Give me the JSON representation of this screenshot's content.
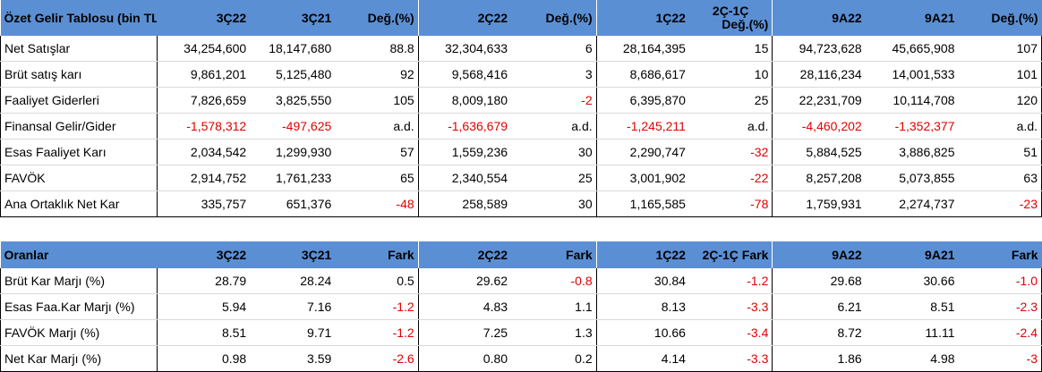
{
  "income": {
    "headers": [
      "Özet Gelir Tablosu (bin TL)",
      "3Ç22",
      "3Ç21",
      "Değ.(%)",
      "2Ç22",
      "Değ.(%)",
      "1Ç22",
      "2Ç-1Ç Değ.(%)",
      "9A22",
      "9A21",
      "Değ.(%)"
    ],
    "header_2c1c_line1": "2Ç-1Ç",
    "header_2c1c_line2": "Değ.(%)",
    "rows": [
      [
        "Net Satışlar",
        "34,254,600",
        "18,147,680",
        "88.8",
        "32,304,633",
        "6",
        "28,164,395",
        "15",
        "94,723,628",
        "45,665,908",
        "107"
      ],
      [
        "Brüt satış karı",
        "9,861,201",
        "5,125,480",
        "92",
        "9,568,416",
        "3",
        "8,686,617",
        "10",
        "28,116,234",
        "14,001,533",
        "101"
      ],
      [
        "Faaliyet Giderleri",
        "7,826,659",
        "3,825,550",
        "105",
        "8,009,180",
        "-2",
        "6,395,870",
        "25",
        "22,231,709",
        "10,114,708",
        "120"
      ],
      [
        "Finansal Gelir/Gider",
        "-1,578,312",
        "-497,625",
        "a.d.",
        "-1,636,679",
        "a.d.",
        "-1,245,211",
        "a.d.",
        "-4,460,202",
        "-1,352,377",
        "a.d."
      ],
      [
        "Esas Faaliyet Karı",
        "2,034,542",
        "1,299,930",
        "57",
        "1,559,236",
        "30",
        "2,290,747",
        "-32",
        "5,884,525",
        "3,886,825",
        "51"
      ],
      [
        "FAVÖK",
        "2,914,752",
        "1,761,233",
        "65",
        "2,340,554",
        "25",
        "3,001,902",
        "-22",
        "8,257,208",
        "5,073,855",
        "63"
      ],
      [
        "Ana Ortaklık Net Kar",
        "335,757",
        "651,376",
        "-48",
        "258,589",
        "30",
        "1,165,585",
        "-78",
        "1,759,931",
        "2,274,737",
        "-23"
      ]
    ]
  },
  "ratios": {
    "headers": [
      "Oranlar",
      "3Ç22",
      "3Ç21",
      "Fark",
      "2Ç22",
      "Fark",
      "1Ç22",
      "2Ç-1Ç Fark",
      "9A22",
      "9A21",
      "Fark"
    ],
    "rows": [
      [
        "Brüt Kar Marjı (%)",
        "28.79",
        "28.24",
        "0.5",
        "29.62",
        "-0.8",
        "30.84",
        "-1.2",
        "29.68",
        "30.66",
        "-1.0"
      ],
      [
        "Esas Faa.Kar Marjı (%)",
        "5.94",
        "7.16",
        "-1.2",
        "4.83",
        "1.1",
        "8.13",
        "-3.3",
        "6.21",
        "8.51",
        "-2.3"
      ],
      [
        "FAVÖK Marjı (%)",
        "8.51",
        "9.71",
        "-1.2",
        "7.25",
        "1.3",
        "10.66",
        "-3.4",
        "8.72",
        "11.11",
        "-2.4"
      ],
      [
        "Net Kar Marjı (%)",
        "0.98",
        "3.59",
        "-2.6",
        "0.80",
        "0.2",
        "4.14",
        "-3.3",
        "1.86",
        "4.98",
        "-3"
      ]
    ]
  },
  "colors": {
    "header_bg": "#5b8fd4",
    "negative": "#e00000"
  }
}
